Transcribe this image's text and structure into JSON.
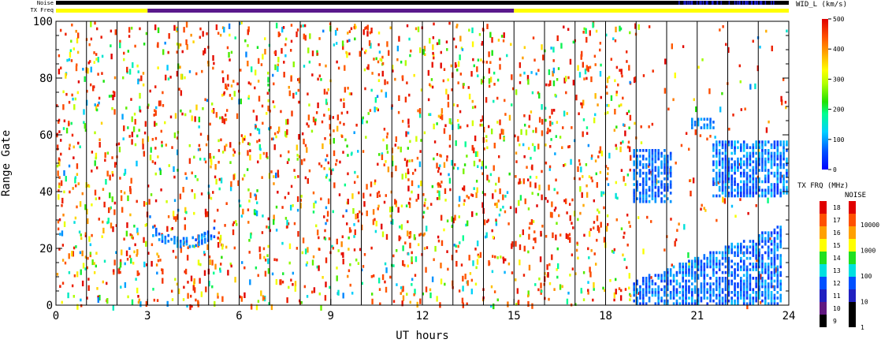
{
  "chart_data": {
    "type": "heatmap",
    "xlabel": "UT hours",
    "ylabel": "Range Gate",
    "xlim": [
      0,
      24
    ],
    "ylim": [
      0,
      100
    ],
    "x_ticks": [
      "0",
      "3",
      "6",
      "9",
      "12",
      "15",
      "18",
      "21",
      "24"
    ],
    "y_ticks": [
      "0",
      "20",
      "40",
      "60",
      "80",
      "100"
    ],
    "hour_gridlines": [
      1,
      2,
      3,
      4,
      5,
      6,
      7,
      8,
      9,
      10,
      11,
      12,
      13,
      14,
      15,
      16,
      17,
      18,
      19,
      20,
      21,
      22,
      23
    ],
    "top_strips": {
      "noise_label": "Noise",
      "txfreq_label": "TX Freq",
      "txfreq_segments": [
        {
          "start": 0,
          "end": 3,
          "color": "#ffff00"
        },
        {
          "start": 3,
          "end": 15,
          "color": "#5a1a8c"
        },
        {
          "start": 15,
          "end": 24,
          "color": "#ffff00"
        }
      ]
    },
    "velocity_scale": {
      "title": "WID_L (km/s)",
      "range": [
        0,
        500
      ],
      "tick_labels": [
        "500",
        "400",
        "300",
        "200",
        "100",
        "0"
      ]
    },
    "txfreq_scale": {
      "title": "TX FRQ (MHz)",
      "tick_labels": [
        "18",
        "17",
        "16",
        "15",
        "14",
        "13",
        "12",
        "11",
        "10",
        "9"
      ]
    },
    "noise_scale": {
      "title": "NOISE",
      "tick_labels": [
        "10000",
        "1000",
        "100",
        "10",
        "1"
      ]
    },
    "dense_regions": [
      {
        "x0": 3.15,
        "x1": 5.2,
        "y0": 20,
        "y1": 26,
        "value_range": [
          50,
          120
        ]
      },
      {
        "x0": 18.9,
        "x1": 20.2,
        "y0": 36,
        "y1": 55,
        "value_range": [
          40,
          110
        ]
      },
      {
        "x0": 18.9,
        "x1": 23.8,
        "y0": 0,
        "y1": 28,
        "value_range": [
          30,
          120
        ]
      },
      {
        "x0": 21.5,
        "x1": 24.0,
        "y0": 38,
        "y1": 58,
        "value_range": [
          30,
          130
        ]
      },
      {
        "x0": 20.8,
        "x1": 21.6,
        "y0": 62,
        "y1": 66,
        "value_range": [
          60,
          120
        ]
      }
    ]
  }
}
